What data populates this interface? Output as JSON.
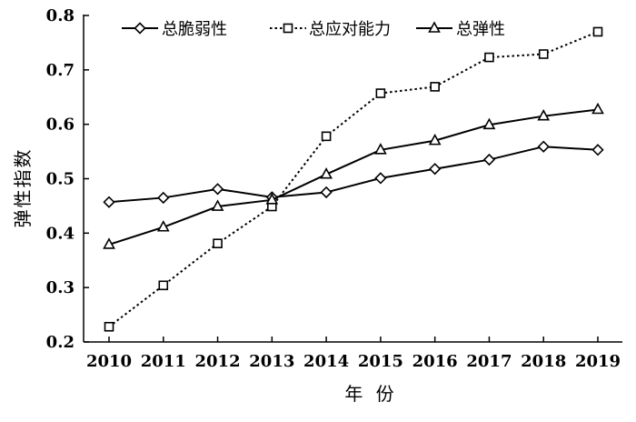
{
  "chart_data": {
    "type": "line",
    "x": [
      "2010",
      "2011",
      "2012",
      "2013",
      "2014",
      "2015",
      "2016",
      "2017",
      "2018",
      "2019"
    ],
    "series": [
      {
        "name": "总脆弱性",
        "marker": "diamond",
        "dash": "solid",
        "values": [
          0.457,
          0.465,
          0.481,
          0.466,
          0.475,
          0.501,
          0.518,
          0.535,
          0.559,
          0.553
        ]
      },
      {
        "name": "总应对能力",
        "marker": "square",
        "dash": "dotted",
        "values": [
          0.228,
          0.304,
          0.381,
          0.449,
          0.578,
          0.657,
          0.669,
          0.723,
          0.729,
          0.77
        ]
      },
      {
        "name": "总弹性",
        "marker": "triangle",
        "dash": "solid",
        "values": [
          0.379,
          0.411,
          0.449,
          0.461,
          0.508,
          0.553,
          0.57,
          0.599,
          0.615,
          0.627
        ]
      }
    ],
    "xlabel": "年 份",
    "ylabel": "弹性指数",
    "ylim": [
      0.2,
      0.8
    ],
    "yticks": [
      "0.2",
      "0.3",
      "0.4",
      "0.5",
      "0.6",
      "0.7",
      "0.8"
    ],
    "grid": false,
    "legend_position": "top-left",
    "line_color": "#000000"
  }
}
